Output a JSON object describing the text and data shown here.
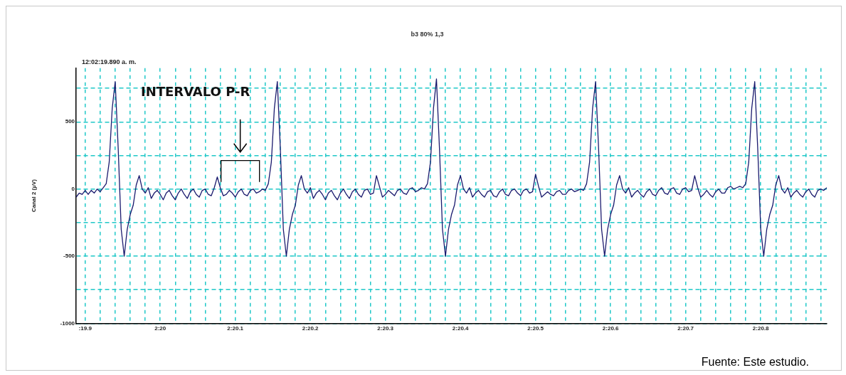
{
  "chart_data": {
    "type": "line",
    "title": "b3 80% 1,3",
    "ylabel": "Canal 2 (µV)",
    "categories": [
      null,
      null,
      null,
      ":19.9",
      null,
      null,
      null,
      null,
      null,
      null,
      null,
      null,
      null,
      null,
      null,
      null,
      null,
      null,
      null,
      null,
      null,
      null,
      null,
      null,
      null,
      null,
      null,
      null,
      "2:20",
      null,
      null,
      null,
      null,
      null,
      null,
      null,
      null,
      null,
      null,
      null,
      null,
      null,
      null,
      null,
      null,
      null,
      null,
      null,
      null,
      null,
      null,
      null,
      null,
      "2:20.1",
      null,
      null,
      null,
      null,
      null,
      null,
      null,
      null,
      null,
      null,
      null,
      null,
      null,
      null,
      null,
      null,
      null,
      null,
      null,
      null,
      null,
      null,
      null,
      null,
      "2:20.2",
      null,
      null,
      null,
      null,
      null,
      null,
      null,
      null,
      null,
      null,
      null,
      null,
      null,
      null,
      null,
      null,
      null,
      null,
      null,
      null,
      null,
      null,
      null,
      null,
      "2:20.3",
      null,
      null,
      null,
      null,
      null,
      null,
      null,
      null,
      null,
      null,
      null,
      null,
      null,
      null,
      null,
      null,
      null,
      null,
      null,
      null,
      null,
      null,
      null,
      null,
      "2:20.4",
      null,
      null,
      null,
      null,
      null,
      null,
      null,
      null,
      null,
      null,
      null,
      null,
      null,
      null,
      null,
      null,
      null,
      null,
      null,
      null,
      null,
      null,
      null,
      null,
      "2:20.5",
      null,
      null,
      null,
      null,
      null,
      null,
      null,
      null,
      null,
      null,
      null,
      null,
      null,
      null,
      null,
      null,
      null,
      null,
      null,
      null,
      null,
      null,
      null,
      null,
      "2:20.6",
      null,
      null,
      null,
      null,
      null,
      null,
      null,
      null,
      null,
      null,
      null,
      null,
      null,
      null,
      null,
      null,
      null,
      null,
      null,
      null,
      null,
      null,
      null,
      null,
      "2:20.7",
      null,
      null,
      null,
      null,
      null,
      null,
      null,
      null,
      null,
      null,
      null,
      null,
      null,
      null,
      null,
      null,
      null,
      null,
      null,
      null,
      null,
      null,
      null,
      null,
      "2:20.8",
      null,
      null,
      null,
      null,
      null,
      null,
      null,
      null,
      null,
      null,
      null,
      null,
      null,
      null,
      null,
      null,
      null,
      null,
      null,
      null,
      null,
      null
    ],
    "series": [
      {
        "color": "#1a1a6e",
        "values": [
          -60,
          -30,
          -40,
          -10,
          -40,
          -10,
          -30,
          0,
          -20,
          10,
          40,
          200,
          600,
          800,
          300,
          -300,
          -500,
          -300,
          -190,
          -120,
          30,
          100,
          0,
          -30,
          10,
          -70,
          -30,
          -10,
          -40,
          -80,
          -30,
          -10,
          -50,
          -80,
          -30,
          0,
          -40,
          -70,
          -20,
          0,
          -40,
          -60,
          -10,
          0,
          -40,
          -50,
          10,
          90,
          10,
          -50,
          -40,
          -10,
          -30,
          -60,
          -20,
          0,
          -40,
          -50,
          -10,
          0,
          -30,
          -20,
          0,
          -10,
          40,
          200,
          600,
          800,
          300,
          -300,
          -500,
          -300,
          -190,
          -120,
          30,
          100,
          0,
          -30,
          10,
          -70,
          -30,
          -10,
          -40,
          -80,
          -30,
          -10,
          -50,
          -80,
          -30,
          0,
          -40,
          -70,
          -20,
          0,
          -40,
          -60,
          -10,
          0,
          -40,
          -30,
          100,
          20,
          -60,
          -40,
          -10,
          -30,
          -50,
          -10,
          0,
          -30,
          -40,
          0,
          10,
          -20,
          -10,
          10,
          0,
          40,
          200,
          600,
          820,
          300,
          -300,
          -500,
          -300,
          -190,
          -120,
          30,
          100,
          0,
          -30,
          10,
          -60,
          -30,
          -10,
          -40,
          -60,
          -20,
          -10,
          -50,
          -60,
          -20,
          0,
          -40,
          -50,
          -10,
          0,
          -30,
          -50,
          -10,
          0,
          -30,
          -20,
          110,
          20,
          -60,
          -40,
          -20,
          -40,
          -50,
          -20,
          -10,
          -40,
          -40,
          -10,
          0,
          -20,
          -10,
          0,
          -10,
          40,
          200,
          600,
          800,
          300,
          -300,
          -500,
          -300,
          -190,
          -120,
          30,
          100,
          0,
          -30,
          10,
          -60,
          -30,
          -10,
          -40,
          -60,
          -20,
          0,
          -40,
          -50,
          -10,
          10,
          -30,
          -40,
          0,
          10,
          -30,
          -40,
          0,
          10,
          -20,
          -10,
          100,
          10,
          -60,
          -40,
          -10,
          -40,
          -60,
          -20,
          0,
          -30,
          -30,
          10,
          20,
          0,
          10,
          20,
          10,
          40,
          200,
          600,
          800,
          300,
          -300,
          -500,
          -300,
          -190,
          -120,
          30,
          100,
          0,
          -30,
          10,
          -60,
          -30,
          -10,
          -40,
          -60,
          -20,
          0,
          -40,
          -60,
          -10,
          0,
          -10,
          10
        ]
      }
    ],
    "ylim": [
      -1000,
      900
    ],
    "yticks": [
      -1000,
      {
        "value": -750,
        "label": null
      },
      -500,
      {
        "value": -250,
        "label": null
      },
      0,
      {
        "value": 250,
        "label": null
      },
      500,
      {
        "value": 750,
        "label": null
      }
    ],
    "grid": true,
    "annotations": [
      "12:02:19.890 a. m.",
      "INTERVALO P-R",
      "Fuente: Este estudio."
    ]
  }
}
